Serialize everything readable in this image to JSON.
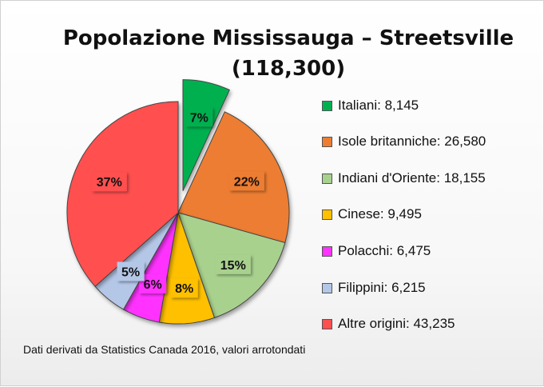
{
  "chart_data": {
    "type": "pie",
    "title_line1": "Popolazione Mississauga – Streetsville",
    "title_line2": "(118,300)",
    "slices": [
      {
        "name": "Italiani",
        "legend": "Italiani: 8,145",
        "value": 8145,
        "percent_label": "7%",
        "color": "#00b050",
        "exploded": true
      },
      {
        "name": "Isole britanniche",
        "legend": "Isole britanniche: 26,580",
        "value": 26580,
        "percent_label": "22%",
        "color": "#ed7d31",
        "exploded": false
      },
      {
        "name": "Indiani d'Oriente",
        "legend": "Indiani d'Oriente: 18,155",
        "value": 18155,
        "percent_label": "15%",
        "color": "#a9d18e",
        "exploded": false
      },
      {
        "name": "Cinese",
        "legend": "Cinese: 9,495",
        "value": 9495,
        "percent_label": "8%",
        "color": "#ffc000",
        "exploded": false
      },
      {
        "name": "Polacchi",
        "legend": "Polacchi: 6,475",
        "value": 6475,
        "percent_label": "6%",
        "color": "#ff33ff",
        "exploded": false
      },
      {
        "name": "Filippini",
        "legend": "Filippini: 6,215",
        "value": 6215,
        "percent_label": "5%",
        "color": "#b4c7e7",
        "exploded": false
      },
      {
        "name": "Altre origini",
        "legend": "Altre origini: 43,235",
        "value": 43235,
        "percent_label": "37%",
        "color": "#ff5050",
        "exploded": false
      }
    ],
    "legend_position": "right",
    "source_note": "Dati derivati da Statistics Canada 2016, valori arrotondati"
  }
}
